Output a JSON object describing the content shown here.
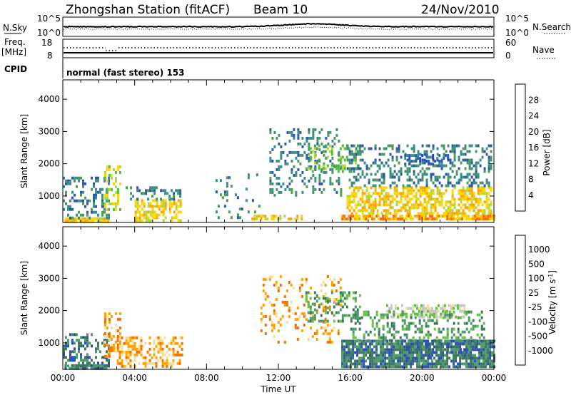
{
  "header": {
    "station": "Zhongshan Station (fitACF)",
    "beam": "Beam 10",
    "date": "24/Nov/2010"
  },
  "top_strips": {
    "nsky_label": "N.Sky",
    "nsky_ticks": [
      "10^5",
      "10^0"
    ],
    "nsearch_label": "N.Search",
    "nsearch_ticks": [
      "10^5",
      "10^0"
    ],
    "freq_label_1": "Freq.",
    "freq_label_2": "[MHz]",
    "freq_ticks": [
      "18",
      "8"
    ],
    "nave_label": "Nave",
    "nave_ticks": [
      "60",
      "0"
    ],
    "cpid_label": "CPID",
    "cpid_text": "normal (fast stereo) 153"
  },
  "chart_data": [
    {
      "type": "heatmap",
      "title": "",
      "xlabel": "Time UT",
      "ylabel": "Slant Range [km]",
      "x_ticks": [
        "00:00",
        "04:00",
        "08:00",
        "12:00",
        "16:00",
        "20:00",
        "00:00"
      ],
      "xlim_hours": [
        0,
        24
      ],
      "ylim": [
        180,
        4600
      ],
      "y_ticks": [
        1000,
        2000,
        3000,
        4000
      ],
      "colorbar": {
        "label": "Power [dB]",
        "ticks": [
          "4",
          "8",
          "12",
          "16",
          "20",
          "24",
          "28"
        ],
        "colors": [
          "#1f3fe8",
          "#2b5aa8",
          "#3a8c8c",
          "#4e9a5a",
          "#4fbf3a",
          "#b8d43a",
          "#ffd400",
          "#ffa300",
          "#ff6a00",
          "#e81c00"
        ]
      },
      "regions": [
        {
          "t": [
            0.1,
            2.6
          ],
          "r": [
            250,
            340
          ],
          "level": 6,
          "density": 0.9
        },
        {
          "t": [
            0.0,
            2.6
          ],
          "r": [
            300,
            1600
          ],
          "level": 2,
          "density": 0.35
        },
        {
          "t": [
            2.3,
            3.2
          ],
          "r": [
            600,
            1950
          ],
          "level": 5,
          "density": 0.45
        },
        {
          "t": [
            4.0,
            6.6
          ],
          "r": [
            250,
            900
          ],
          "level": 6,
          "density": 0.55
        },
        {
          "t": [
            3.5,
            6.5
          ],
          "r": [
            900,
            1300
          ],
          "level": 2,
          "density": 0.35
        },
        {
          "t": [
            8.5,
            11.0
          ],
          "r": [
            300,
            1700
          ],
          "level": 2,
          "density": 0.1
        },
        {
          "t": [
            10.5,
            13.5
          ],
          "r": [
            250,
            420
          ],
          "level": 6,
          "density": 0.6
        },
        {
          "t": [
            11.5,
            15.5
          ],
          "r": [
            1000,
            3100
          ],
          "level": 2,
          "density": 0.25
        },
        {
          "t": [
            13.5,
            16.5
          ],
          "r": [
            1800,
            2600
          ],
          "level": 4,
          "density": 0.3
        },
        {
          "t": [
            15.5,
            24.0
          ],
          "r": [
            300,
            420
          ],
          "level": 7,
          "density": 0.8
        },
        {
          "t": [
            15.8,
            23.8
          ],
          "r": [
            450,
            1300
          ],
          "level": 6,
          "density": 0.6
        },
        {
          "t": [
            15.8,
            23.8
          ],
          "r": [
            1300,
            2600
          ],
          "level": 2,
          "density": 0.35
        },
        {
          "t": [
            19.0,
            21.5
          ],
          "r": [
            2000,
            2300
          ],
          "level": 1,
          "density": 0.5
        }
      ]
    },
    {
      "type": "heatmap",
      "title": "",
      "xlabel": "Time UT",
      "ylabel": "Slant Range [km]",
      "x_ticks": [
        "00:00",
        "04:00",
        "08:00",
        "12:00",
        "16:00",
        "20:00",
        "00:00"
      ],
      "xlim_hours": [
        0,
        24
      ],
      "ylim": [
        180,
        4600
      ],
      "y_ticks": [
        1000,
        2000,
        3000,
        4000
      ],
      "colorbar": {
        "label": "Velocity [m s^-1]",
        "ticks": [
          "1000",
          "500",
          "100",
          "25",
          "-25",
          "-100",
          "-500",
          "-1000"
        ],
        "colors": [
          "#2b4fb8",
          "#3a7a5a",
          "#4e9a6a",
          "#66c244",
          "#c8c8c8",
          "#f0e0a0",
          "#ffa300",
          "#f07000",
          "#e81c00"
        ]
      },
      "regions": [
        {
          "t": [
            0.1,
            2.6
          ],
          "r": [
            250,
            340
          ],
          "level": 1,
          "density": 0.9
        },
        {
          "t": [
            0.0,
            2.6
          ],
          "r": [
            300,
            1300
          ],
          "level": 1,
          "density": 0.35
        },
        {
          "t": [
            2.3,
            3.2
          ],
          "r": [
            600,
            1950
          ],
          "level": 6,
          "density": 0.45
        },
        {
          "t": [
            3.0,
            6.6
          ],
          "r": [
            250,
            1200
          ],
          "level": 6,
          "density": 0.45
        },
        {
          "t": [
            11.0,
            15.5
          ],
          "r": [
            1000,
            3100
          ],
          "level": 6,
          "density": 0.2
        },
        {
          "t": [
            13.5,
            16.5
          ],
          "r": [
            1700,
            2600
          ],
          "level": 2,
          "density": 0.35
        },
        {
          "t": [
            15.5,
            24.0
          ],
          "r": [
            300,
            1100
          ],
          "level": 1,
          "density": 0.85
        },
        {
          "t": [
            18.0,
            22.5
          ],
          "r": [
            1800,
            2200
          ],
          "level": 4,
          "density": 0.55
        },
        {
          "t": [
            19.0,
            23.0
          ],
          "r": [
            500,
            1100
          ],
          "level": 0,
          "density": 0.25
        },
        {
          "t": [
            16.0,
            23.5
          ],
          "r": [
            1100,
            2000
          ],
          "level": 2,
          "density": 0.3
        }
      ]
    }
  ]
}
